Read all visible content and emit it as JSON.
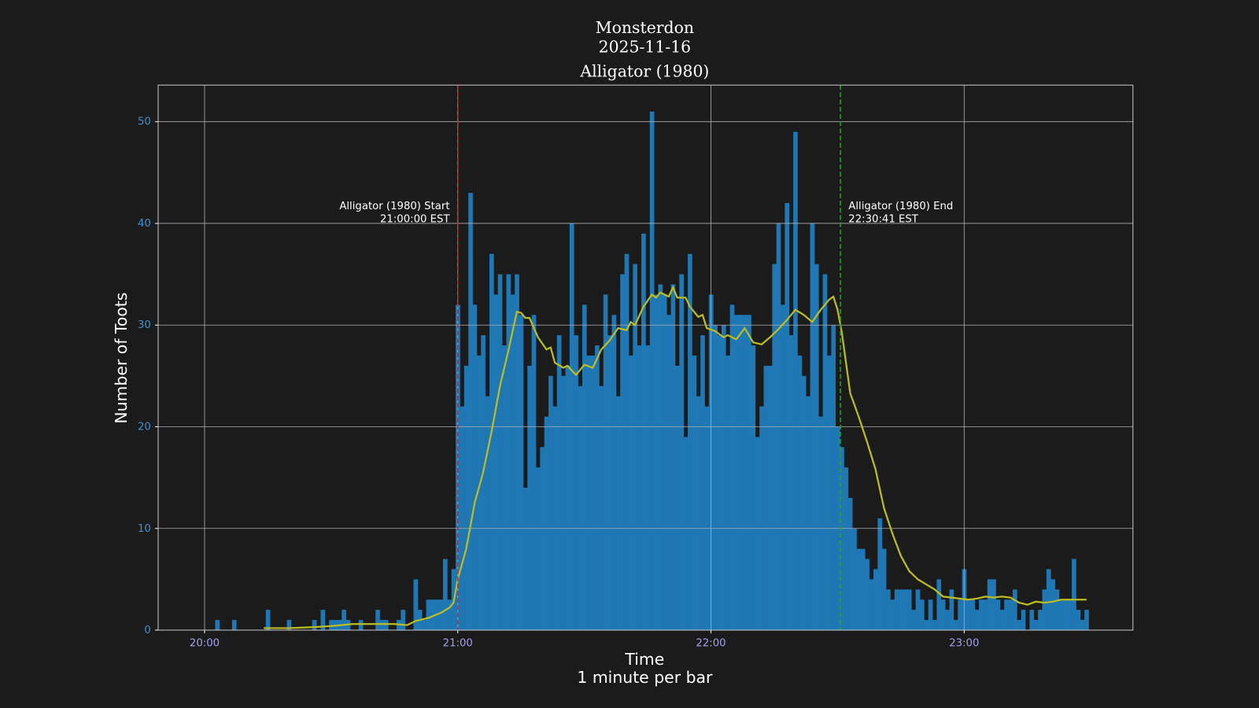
{
  "chart_data": {
    "type": "bar",
    "title": [
      "Monsterdon",
      "2025-11-16",
      "Alligator (1980)"
    ],
    "y_label": "Number of Toots",
    "x_label": [
      "Time",
      "1 minute per bar"
    ],
    "x": [
      "20:00",
      "20:01",
      "20:02",
      "20:03",
      "20:04",
      "20:05",
      "20:06",
      "20:07",
      "20:08",
      "20:09",
      "20:10",
      "20:11",
      "20:12",
      "20:13",
      "20:14",
      "20:15",
      "20:16",
      "20:17",
      "20:18",
      "20:19",
      "20:20",
      "20:21",
      "20:22",
      "20:23",
      "20:24",
      "20:25",
      "20:26",
      "20:27",
      "20:28",
      "20:29",
      "20:30",
      "20:31",
      "20:32",
      "20:33",
      "20:34",
      "20:35",
      "20:36",
      "20:37",
      "20:38",
      "20:39",
      "20:40",
      "20:41",
      "20:42",
      "20:43",
      "20:44",
      "20:45",
      "20:46",
      "20:47",
      "20:48",
      "20:49",
      "20:50",
      "20:51",
      "20:52",
      "20:53",
      "20:54",
      "20:55",
      "20:56",
      "20:57",
      "20:58",
      "20:59",
      "21:00",
      "21:01",
      "21:02",
      "21:03",
      "21:04",
      "21:05",
      "21:06",
      "21:07",
      "21:08",
      "21:09",
      "21:10",
      "21:11",
      "21:12",
      "21:13",
      "21:14",
      "21:15",
      "21:16",
      "21:17",
      "21:18",
      "21:19",
      "21:20",
      "21:21",
      "21:22",
      "21:23",
      "21:24",
      "21:25",
      "21:26",
      "21:27",
      "21:28",
      "21:29",
      "21:30",
      "21:31",
      "21:32",
      "21:33",
      "21:34",
      "21:35",
      "21:36",
      "21:37",
      "21:38",
      "21:39",
      "21:40",
      "21:41",
      "21:42",
      "21:43",
      "21:44",
      "21:45",
      "21:46",
      "21:47",
      "21:48",
      "21:49",
      "21:50",
      "21:51",
      "21:52",
      "21:53",
      "21:54",
      "21:55",
      "21:56",
      "21:57",
      "21:58",
      "21:59",
      "22:00",
      "22:01",
      "22:02",
      "22:03",
      "22:04",
      "22:05",
      "22:06",
      "22:07",
      "22:08",
      "22:09",
      "22:10",
      "22:11",
      "22:12",
      "22:13",
      "22:14",
      "22:15",
      "22:16",
      "22:17",
      "22:18",
      "22:19",
      "22:20",
      "22:21",
      "22:22",
      "22:23",
      "22:24",
      "22:25",
      "22:26",
      "22:27",
      "22:28",
      "22:29",
      "22:30",
      "22:31",
      "22:32",
      "22:33",
      "22:34",
      "22:35",
      "22:36",
      "22:37",
      "22:38",
      "22:39",
      "22:40",
      "22:41",
      "22:42",
      "22:43",
      "22:44",
      "22:45",
      "22:46",
      "22:47",
      "22:48",
      "22:49",
      "22:50",
      "22:51",
      "22:52",
      "22:53",
      "22:54",
      "22:55",
      "22:56",
      "22:57",
      "22:58",
      "22:59",
      "23:00",
      "23:01",
      "23:02",
      "23:03",
      "23:04",
      "23:05",
      "23:06",
      "23:07",
      "23:08",
      "23:09",
      "23:10",
      "23:11",
      "23:12",
      "23:13",
      "23:14",
      "23:15",
      "23:16",
      "23:17",
      "23:18",
      "23:19",
      "23:20",
      "23:21",
      "23:22",
      "23:23",
      "23:24",
      "23:25",
      "23:26",
      "23:27",
      "23:28",
      "23:29"
    ],
    "series": [
      {
        "type": "bar",
        "color": "#1f77b4",
        "values": [
          0,
          0,
          0,
          1,
          0,
          0,
          0,
          1,
          0,
          0,
          0,
          0,
          0,
          0,
          0,
          2,
          0,
          0,
          0,
          0,
          1,
          0,
          0,
          0,
          0,
          0,
          1,
          0,
          2,
          0,
          1,
          1,
          1,
          2,
          1,
          0,
          0,
          1,
          0,
          0,
          0,
          2,
          1,
          1,
          0,
          0,
          1,
          2,
          0,
          0,
          5,
          2,
          1,
          3,
          3,
          3,
          3,
          7,
          3,
          6,
          32,
          22,
          26,
          43,
          32,
          27,
          29,
          23,
          37,
          33,
          35,
          28,
          35,
          33,
          35,
          31,
          14,
          26,
          31,
          16,
          18,
          21,
          25,
          22,
          29,
          25,
          26,
          40,
          29,
          24,
          32,
          27,
          27,
          28,
          24,
          33,
          29,
          31,
          23,
          35,
          37,
          27,
          36,
          28,
          39,
          28,
          51,
          33,
          34,
          33,
          31,
          34,
          26,
          35,
          19,
          37,
          27,
          23,
          29,
          22,
          33,
          30,
          29,
          30,
          27,
          32,
          31,
          31,
          31,
          31,
          28,
          19,
          22,
          26,
          26,
          36,
          40,
          32,
          42,
          29,
          49,
          27,
          25,
          23,
          40,
          36,
          21,
          35,
          27,
          30,
          20,
          18,
          16,
          13,
          10,
          8,
          8,
          7,
          5,
          6,
          11,
          8,
          4,
          3,
          4,
          4,
          4,
          4,
          2,
          4,
          3,
          1,
          3,
          1,
          5,
          3,
          2,
          4,
          1,
          3,
          6,
          3,
          3,
          2,
          3,
          3,
          5,
          5,
          3,
          2,
          3,
          3,
          4,
          1,
          2,
          0,
          2,
          1,
          2,
          4,
          6,
          5,
          4,
          3,
          3,
          3,
          7,
          2,
          1,
          2
        ]
      },
      {
        "type": "line",
        "color": "#bcbd22",
        "x": [
          "20:14",
          "20:20",
          "20:26",
          "20:30",
          "20:35",
          "20:40",
          "20:45",
          "20:48",
          "20:50",
          "20:53",
          "20:56",
          "20:58",
          "20:59",
          "21:00",
          "21:02",
          "21:04",
          "21:06",
          "21:08",
          "21:10",
          "21:12",
          "21:14",
          "21:15",
          "21:16",
          "21:17",
          "21:19",
          "21:21",
          "21:22",
          "21:23",
          "21:25",
          "21:26",
          "21:28",
          "21:30",
          "21:32",
          "21:34",
          "21:36",
          "21:38",
          "21:40",
          "21:41",
          "21:42",
          "21:44",
          "21:46",
          "21:47",
          "21:48",
          "21:50",
          "21:51",
          "21:52",
          "21:54",
          "21:55",
          "21:57",
          "21:58",
          "21:59",
          "22:01",
          "22:03",
          "22:04",
          "22:06",
          "22:08",
          "22:10",
          "22:12",
          "22:14",
          "22:16",
          "22:18",
          "22:20",
          "22:22",
          "22:24",
          "22:26",
          "22:28",
          "22:29",
          "22:30",
          "22:31",
          "22:32",
          "22:33",
          "22:35",
          "22:37",
          "22:39",
          "22:41",
          "22:43",
          "22:45",
          "22:47",
          "22:49",
          "22:51",
          "22:53",
          "22:55",
          "22:57",
          "22:59",
          "23:01",
          "23:03",
          "23:05",
          "23:07",
          "23:09",
          "23:11",
          "23:13",
          "23:15",
          "23:17",
          "23:19",
          "23:21",
          "23:23",
          "23:25",
          "23:27",
          "23:29"
        ],
        "values": [
          0.2,
          0.2,
          0.3,
          0.4,
          0.6,
          0.6,
          0.6,
          0.5,
          0.9,
          1.2,
          1.7,
          2.2,
          2.7,
          5,
          8,
          12.5,
          15.5,
          19.5,
          24,
          27.5,
          31.3,
          31.2,
          30.7,
          30.7,
          28.8,
          27.6,
          27.8,
          26.3,
          25.8,
          26,
          25.1,
          26.1,
          25.8,
          27.6,
          28.5,
          29.7,
          29.5,
          30.3,
          30,
          31.8,
          33,
          32.7,
          33.2,
          32.8,
          33.7,
          32.7,
          32.7,
          31.8,
          30.8,
          31,
          29.7,
          29.4,
          28.8,
          29,
          28.6,
          29.7,
          28.3,
          28.1,
          28.8,
          29.6,
          30.5,
          31.5,
          31,
          30.3,
          31.5,
          32.5,
          32.8,
          31.5,
          29.3,
          26.3,
          23.3,
          21,
          18.5,
          15.8,
          12,
          9.5,
          7.3,
          5.8,
          5,
          4.5,
          4,
          3.3,
          3.2,
          3.1,
          3.0,
          3.1,
          3.3,
          3.2,
          3.3,
          3.2,
          2.7,
          2.5,
          2.8,
          2.7,
          2.8,
          3.0,
          3.0,
          3.0,
          3.0
        ]
      }
    ],
    "annotations": [
      {
        "x": "21:00:00",
        "color": "#d62728",
        "align": "right",
        "text": [
          "Alligator (1980) Start",
          "21:00:00 EST"
        ]
      },
      {
        "x": "22:30:41",
        "color": "#2ca02c",
        "align": "left",
        "text": [
          "Alligator (1980) End",
          "22:30:41 EST"
        ]
      }
    ],
    "xlim": [
      "19:49",
      "23:40"
    ],
    "xticks": [
      "20:00",
      "21:00",
      "22:00",
      "23:00"
    ],
    "ylim": [
      0,
      53.6
    ],
    "yticks": [
      0,
      10,
      20,
      30,
      40,
      50
    ],
    "grid": true
  }
}
